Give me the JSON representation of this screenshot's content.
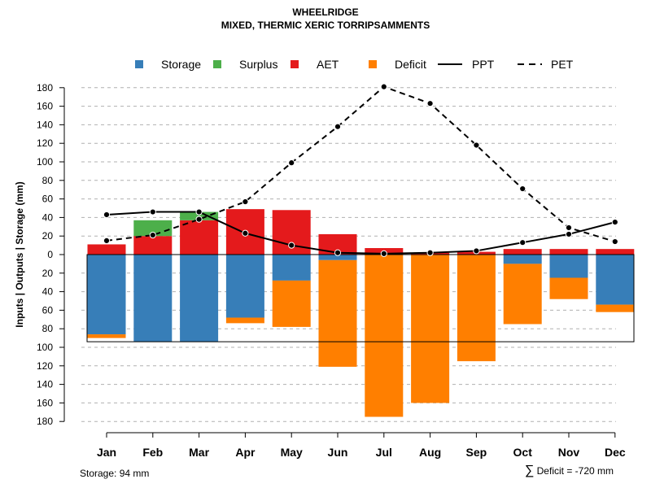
{
  "chart_data": {
    "type": "bar+line",
    "title": "WHEELRIDGE",
    "subtitle": "MIXED, THERMIC XERIC TORRIPSAMMENTS",
    "ylabel": "Inputs | Outputs | Storage    (mm)",
    "ylim": [
      -180,
      180
    ],
    "y_ticks": [
      180,
      160,
      140,
      120,
      100,
      80,
      60,
      40,
      20,
      0,
      20,
      40,
      60,
      80,
      100,
      120,
      140,
      160,
      180
    ],
    "grid": "dashed-horizontal",
    "legend_position": "top",
    "months": [
      "Jan",
      "Feb",
      "Mar",
      "Apr",
      "May",
      "Jun",
      "Jul",
      "Aug",
      "Sep",
      "Oct",
      "Nov",
      "Dec"
    ],
    "legend": [
      {
        "key": "storage",
        "label": "Storage",
        "kind": "box",
        "color": "#377EB8"
      },
      {
        "key": "surplus",
        "label": "Surplus",
        "kind": "box",
        "color": "#4DAF4A"
      },
      {
        "key": "aet",
        "label": "AET",
        "kind": "box",
        "color": "#E41A1C"
      },
      {
        "key": "deficit",
        "label": "Deficit",
        "kind": "box",
        "color": "#FF7F00"
      },
      {
        "key": "ppt",
        "label": "PPT",
        "kind": "solid-line",
        "color": "#000000"
      },
      {
        "key": "pet",
        "label": "PET",
        "kind": "dashed-line",
        "color": "#000000"
      }
    ],
    "above_zero": {
      "aet": [
        11,
        20,
        37,
        49,
        48,
        22,
        7,
        2,
        3,
        6,
        6,
        6
      ],
      "surplus": [
        0,
        17,
        9,
        0,
        0,
        0,
        0,
        0,
        0,
        0,
        0,
        0
      ]
    },
    "below_zero": {
      "storage": [
        86,
        94,
        94,
        68,
        28,
        6,
        0,
        0,
        0,
        10,
        25,
        54
      ],
      "deficit": [
        4,
        0,
        0,
        6,
        50,
        115,
        175,
        160,
        115,
        65,
        23,
        8
      ]
    },
    "ppt": [
      43,
      46,
      46,
      23,
      10,
      2,
      1,
      2,
      4,
      13,
      22,
      35
    ],
    "pet": [
      15,
      21,
      38,
      57,
      99,
      138,
      181,
      163,
      118,
      71,
      29,
      14
    ],
    "awc_box_depth": 94,
    "storage_note": "Storage: 94 mm",
    "deficit_note_symbol": "∑",
    "deficit_note": "Deficit = -720 mm"
  }
}
